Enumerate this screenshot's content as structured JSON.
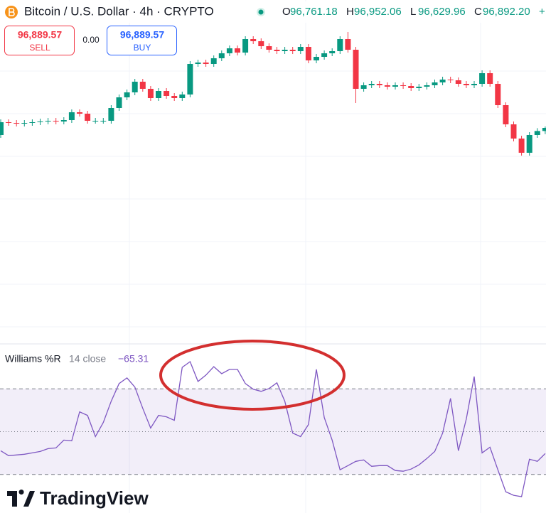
{
  "header": {
    "symbol": "Bitcoin / U.S. Dollar · 4h · CRYPTO",
    "ohlc": [
      {
        "key": "O",
        "value": 96761.18,
        "label": "96,761.18"
      },
      {
        "key": "H",
        "value": 96952.06,
        "label": "96,952.06"
      },
      {
        "key": "L",
        "value": 96629.96,
        "label": "96,629.96"
      },
      {
        "key": "C",
        "value": 96892.2,
        "label": "96,892.20"
      }
    ],
    "change": "+"
  },
  "trade": {
    "sell": {
      "value": 96889.57,
      "label": "96,889.57",
      "text": "SELL"
    },
    "spread": {
      "value": 0,
      "label": "0.00"
    },
    "buy": {
      "value": 96889.57,
      "label": "96,889.57",
      "text": "BUY"
    }
  },
  "brand": "TradingView",
  "chart_data": [
    {
      "type": "candlestick",
      "ylim": [
        87892,
        102292
      ],
      "up_color": "#089981",
      "down_color": "#f23645",
      "open": [
        96592,
        97132,
        97102,
        97072,
        97102,
        97132,
        97162,
        97192,
        97162,
        97222,
        97552,
        97492,
        97192,
        97192,
        97192,
        97732,
        98182,
        98392,
        98842,
        98542,
        98152,
        98452,
        98242,
        98152,
        98302,
        99592,
        99652,
        99592,
        99832,
        100042,
        100252,
        100072,
        100642,
        100552,
        100342,
        100192,
        100132,
        100192,
        100132,
        100312,
        99742,
        99892,
        100042,
        100132,
        100642,
        100192,
        98542,
        98692,
        98752,
        98692,
        98632,
        98692,
        98662,
        98572,
        98632,
        98692,
        98812,
        98932,
        98902,
        98752,
        98692,
        98752,
        99202,
        98752,
        97852,
        97042,
        96442,
        95842,
        96592,
        96761
      ],
      "high": [
        97252,
        97252,
        97222,
        97222,
        97252,
        97282,
        97312,
        97312,
        97342,
        97672,
        97672,
        97612,
        97312,
        97312,
        97852,
        98302,
        98512,
        98962,
        98962,
        98662,
        98572,
        98572,
        98362,
        98422,
        99712,
        99772,
        99772,
        99952,
        100162,
        100372,
        100372,
        100762,
        100762,
        100672,
        100462,
        100312,
        100312,
        100312,
        100432,
        100432,
        100012,
        100162,
        100252,
        100762,
        100942,
        100312,
        98812,
        98872,
        98872,
        98812,
        98812,
        98812,
        98782,
        98752,
        98812,
        98932,
        99052,
        99052,
        99022,
        98872,
        98872,
        99322,
        99322,
        98872,
        97972,
        97162,
        96562,
        96712,
        96881,
        96952
      ],
      "low": [
        96472,
        96982,
        96952,
        96952,
        96982,
        97012,
        97042,
        97042,
        97042,
        97102,
        97372,
        97072,
        97072,
        97072,
        97072,
        97612,
        98062,
        98272,
        98422,
        98032,
        98032,
        98122,
        98032,
        98032,
        98182,
        99472,
        99472,
        99472,
        99712,
        99922,
        99952,
        99952,
        100432,
        100222,
        100072,
        100012,
        100012,
        100012,
        100012,
        99622,
        99622,
        99772,
        99922,
        100012,
        100072,
        97942,
        98422,
        98572,
        98572,
        98512,
        98512,
        98542,
        98452,
        98452,
        98512,
        98572,
        98692,
        98782,
        98632,
        98572,
        98572,
        98632,
        98632,
        97732,
        96922,
        96322,
        95722,
        95722,
        96472,
        96629
      ],
      "close": [
        97132,
        97102,
        97072,
        97102,
        97132,
        97162,
        97192,
        97162,
        97222,
        97552,
        97492,
        97192,
        97192,
        97192,
        97732,
        98182,
        98392,
        98842,
        98542,
        98152,
        98452,
        98242,
        98152,
        98302,
        99592,
        99652,
        99592,
        99832,
        100042,
        100252,
        100072,
        100642,
        100552,
        100342,
        100192,
        100132,
        100192,
        100132,
        100312,
        99742,
        99892,
        100042,
        100132,
        100642,
        100192,
        98542,
        98692,
        98752,
        98692,
        98632,
        98692,
        98662,
        98572,
        98632,
        98692,
        98812,
        98932,
        98902,
        98752,
        98692,
        98752,
        99202,
        98752,
        97852,
        97042,
        96442,
        95842,
        96592,
        96761,
        96892
      ]
    },
    {
      "type": "line",
      "title": "Williams %R",
      "subtitle": "14 close",
      "ylim": [
        -100,
        0
      ],
      "bands": [
        -20,
        -50,
        -80
      ],
      "band_color": "#7e57c2",
      "last_value": {
        "value": -65.31,
        "label": "−65.31"
      },
      "series": [
        {
          "name": "Williams %R",
          "color": "#7e57c2",
          "values": [
            -63.4,
            -66.8,
            -66.3,
            -65.8,
            -64.9,
            -63.9,
            -61.9,
            -61.4,
            -55.9,
            -56.4,
            -36.1,
            -38.6,
            -53.5,
            -43.6,
            -28.7,
            -16.3,
            -12.4,
            -18.8,
            -33.7,
            -47.5,
            -38.6,
            -39.6,
            -42.1,
            -5,
            -1,
            -14.9,
            -10.4,
            -4.5,
            -9.4,
            -6.4,
            -6.4,
            -16.3,
            -20.3,
            -21.8,
            -19.8,
            -15.8,
            -28.7,
            -51,
            -53.5,
            -45,
            -6.4,
            -40.1,
            -55.9,
            -76.7,
            -73.8,
            -70.8,
            -69.8,
            -74.3,
            -73.8,
            -73.8,
            -77.2,
            -77.7,
            -76.2,
            -73.3,
            -68.8,
            -63.9,
            -51,
            -26.7,
            -63.4,
            -41.1,
            -11.4,
            -64.9,
            -60.9,
            -76.7,
            -92.1,
            -94.6,
            -95.5,
            -69.3,
            -70.8,
            -65.31
          ]
        }
      ]
    }
  ]
}
